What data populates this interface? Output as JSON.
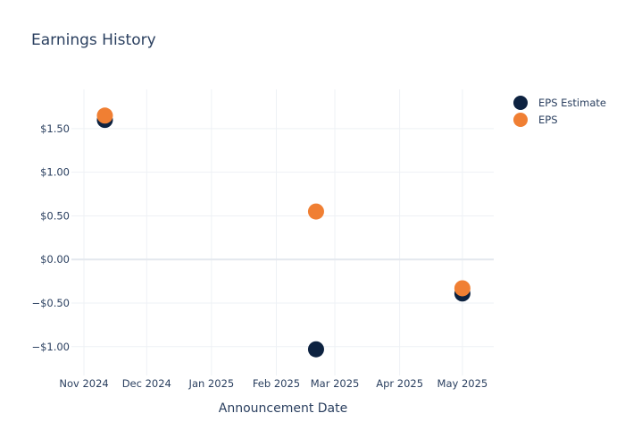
{
  "chart_data": {
    "type": "scatter",
    "title": "Earnings History",
    "xlabel": "Announcement Date",
    "ylabel": "",
    "x_ticks": [
      "Nov 2024",
      "Dec 2024",
      "Jan 2025",
      "Feb 2025",
      "Mar 2025",
      "Apr 2025",
      "May 2025"
    ],
    "x_tick_dates": [
      "2024-11-01",
      "2024-12-01",
      "2025-01-01",
      "2025-02-01",
      "2025-03-01",
      "2025-04-01",
      "2025-05-01"
    ],
    "xlim": [
      "2024-10-26",
      "2025-05-16"
    ],
    "y_ticks": [
      1.5,
      1.0,
      0.5,
      0.0,
      -0.5,
      -1.0
    ],
    "y_tick_labels": [
      "$1.50",
      "$1.00",
      "$0.50",
      "$0.00",
      "−$0.50",
      "−$1.00"
    ],
    "ylim": [
      -1.33,
      1.95
    ],
    "grid": true,
    "legend_position": "top-right",
    "series": [
      {
        "name": "EPS Estimate",
        "color": "#0d2240",
        "points": [
          {
            "x": "2024-11-11",
            "y": 1.6
          },
          {
            "x": "2025-02-20",
            "y": -1.03
          },
          {
            "x": "2025-05-01",
            "y": -0.39
          }
        ]
      },
      {
        "name": "EPS",
        "color": "#f07f33",
        "points": [
          {
            "x": "2024-11-11",
            "y": 1.65
          },
          {
            "x": "2025-02-20",
            "y": 0.55
          },
          {
            "x": "2025-05-01",
            "y": -0.33
          }
        ]
      }
    ]
  }
}
